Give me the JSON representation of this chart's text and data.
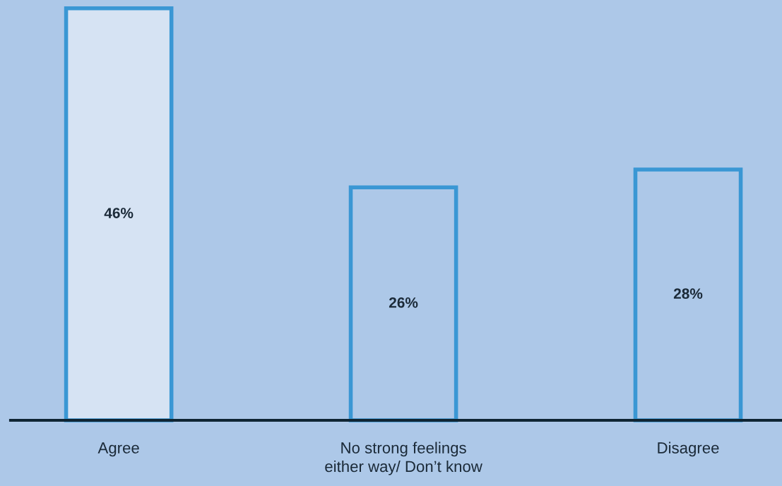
{
  "chart_data": {
    "type": "bar",
    "categories": [
      "Agree",
      "No strong feelings\neither way/ Don’t know",
      "Disagree"
    ],
    "values": [
      46,
      26,
      28
    ],
    "colors": [
      "#d6e3f3",
      "#adc8e8",
      "#adc8e8"
    ],
    "value_labels": [
      "46%",
      "26%",
      "28%"
    ],
    "grid": false,
    "legend": false
  }
}
